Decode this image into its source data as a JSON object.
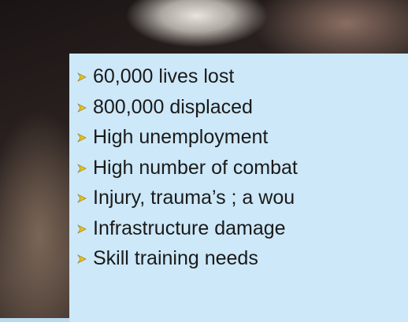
{
  "bullets": [
    "60,000 lives lost",
    "800,000 displaced",
    "High unemployment",
    "High number of combat",
    "Injury, trauma’s ; a wou",
    "Infrastructure damage",
    "Skill training needs"
  ]
}
